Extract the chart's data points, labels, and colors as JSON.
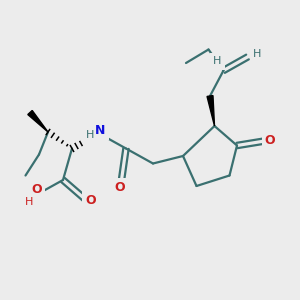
{
  "bg_color": "#ececec",
  "bond_color": "#3a7070",
  "bond_width": 1.6,
  "N_color": "#1010dd",
  "O_color": "#cc2020",
  "atom_color": "#3a7070",
  "figsize": [
    3.0,
    3.0
  ],
  "dpi": 100,
  "xlim": [
    0,
    10
  ],
  "ylim": [
    0,
    10
  ]
}
